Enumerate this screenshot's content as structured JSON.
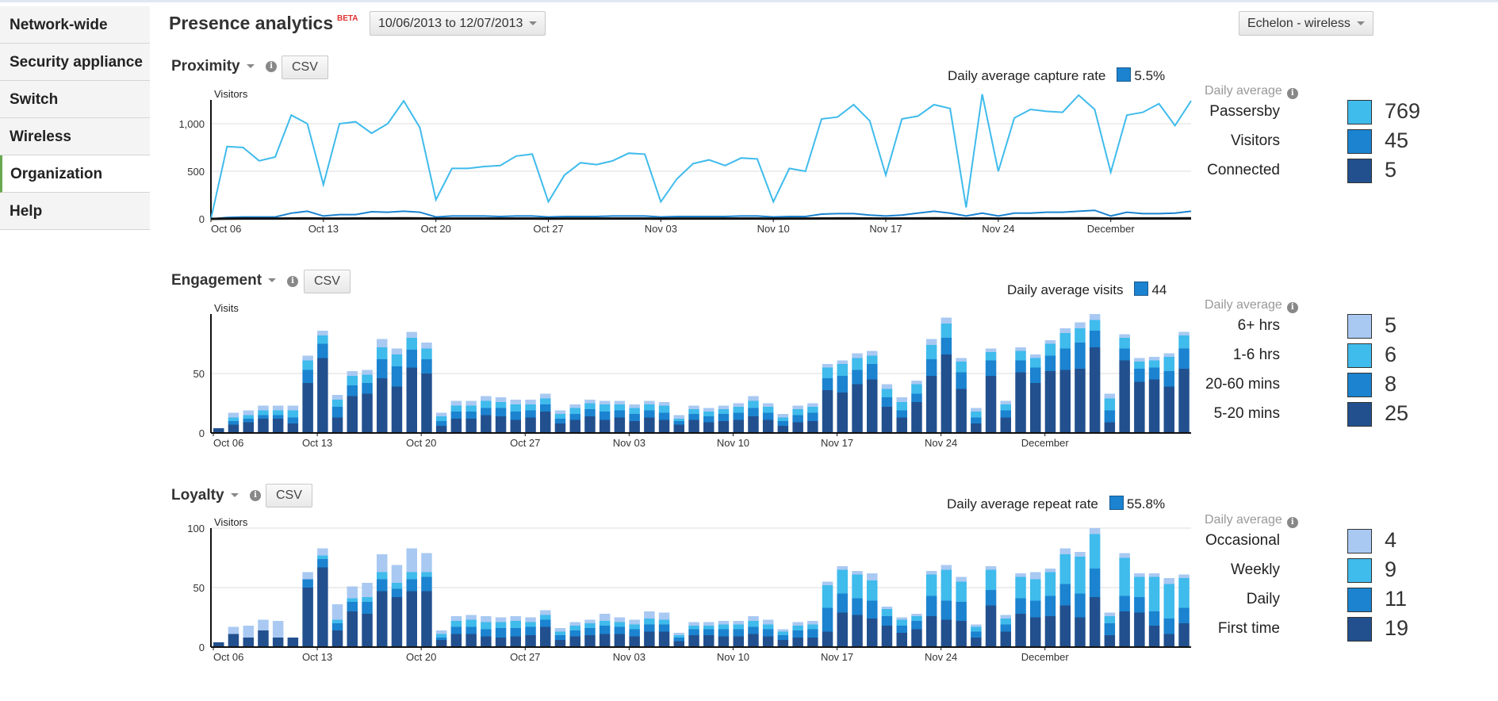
{
  "sidebar": {
    "items": [
      "Network-wide",
      "Security appliance",
      "Switch",
      "Wireless",
      "Organization",
      "Help"
    ],
    "active": "Organization"
  },
  "header": {
    "title": "Presence analytics",
    "badge": "BETA",
    "date_range": "10/06/2013 to 12/07/2013",
    "network": "Echelon - wireless"
  },
  "colors": {
    "passersby": "#3fbbec",
    "visitors": "#1b83d0",
    "connected": "#22508e",
    "light": "#a9c9f2"
  },
  "x_ticks": [
    "Oct 06",
    "Oct 13",
    "Oct 20",
    "Oct 27",
    "Nov 03",
    "Nov 10",
    "Nov 17",
    "Nov 24",
    "December"
  ],
  "sections": {
    "proximity": {
      "title": "Proximity",
      "csv": "CSV",
      "avg_label": "Daily average capture rate",
      "avg_value": "5.5%",
      "legend_head": "Daily average",
      "legend": [
        {
          "label": "Passersby",
          "value": "769",
          "color": "#3fbbec"
        },
        {
          "label": "Visitors",
          "value": "45",
          "color": "#1b83d0"
        },
        {
          "label": "Connected",
          "value": "5",
          "color": "#22508e"
        }
      ]
    },
    "engagement": {
      "title": "Engagement",
      "csv": "CSV",
      "avg_label": "Daily average visits",
      "avg_value": "44",
      "legend_head": "Daily average",
      "legend": [
        {
          "label": "6+ hrs",
          "value": "5",
          "color": "#a9c9f2"
        },
        {
          "label": "1-6 hrs",
          "value": "6",
          "color": "#3fbbec"
        },
        {
          "label": "20-60 mins",
          "value": "8",
          "color": "#1b83d0"
        },
        {
          "label": "5-20 mins",
          "value": "25",
          "color": "#22508e"
        }
      ]
    },
    "loyalty": {
      "title": "Loyalty",
      "csv": "CSV",
      "avg_label": "Daily average repeat rate",
      "avg_value": "55.8%",
      "legend_head": "Daily average",
      "legend": [
        {
          "label": "Occasional",
          "value": "4",
          "color": "#a9c9f2"
        },
        {
          "label": "Weekly",
          "value": "9",
          "color": "#3fbbec"
        },
        {
          "label": "Daily",
          "value": "11",
          "color": "#1b83d0"
        },
        {
          "label": "First time",
          "value": "19",
          "color": "#22508e"
        }
      ]
    }
  },
  "chart_data": [
    {
      "type": "line",
      "ylabel": "Visitors",
      "ylim": [
        0,
        1250
      ],
      "yticks": [
        "1,000",
        "500",
        "0"
      ],
      "ytick_values": [
        1000,
        500,
        0
      ],
      "series": [
        {
          "name": "Passersby",
          "values": [
            0,
            760,
            750,
            610,
            650,
            1090,
            1000,
            360,
            1000,
            1020,
            900,
            1000,
            1240,
            960,
            200,
            530,
            530,
            550,
            560,
            660,
            680,
            180,
            460,
            590,
            570,
            610,
            690,
            680,
            180,
            420,
            580,
            620,
            560,
            640,
            630,
            180,
            530,
            500,
            1050,
            1070,
            1200,
            1030,
            460,
            1050,
            1080,
            1200,
            1160,
            120,
            1310,
            500,
            1060,
            1150,
            1130,
            1120,
            1300,
            1150,
            490,
            1090,
            1120,
            1210,
            980,
            1240
          ]
        },
        {
          "name": "Visitors",
          "values": [
            0,
            15,
            20,
            20,
            20,
            60,
            80,
            30,
            45,
            45,
            75,
            70,
            80,
            70,
            20,
            30,
            30,
            30,
            25,
            30,
            30,
            20,
            25,
            25,
            25,
            30,
            30,
            30,
            20,
            25,
            25,
            25,
            25,
            30,
            30,
            20,
            25,
            25,
            50,
            55,
            55,
            40,
            30,
            40,
            60,
            80,
            60,
            30,
            60,
            30,
            60,
            60,
            70,
            70,
            80,
            90,
            30,
            70,
            55,
            55,
            60,
            80
          ]
        },
        {
          "name": "Connected",
          "values": [
            0,
            2,
            3,
            3,
            3,
            4,
            5,
            3,
            3,
            4,
            5,
            5,
            6,
            5,
            2,
            3,
            3,
            3,
            3,
            3,
            3,
            2,
            3,
            3,
            3,
            3,
            3,
            3,
            2,
            3,
            3,
            3,
            3,
            3,
            3,
            2,
            3,
            3,
            4,
            5,
            5,
            4,
            3,
            4,
            5,
            6,
            5,
            3,
            5,
            3,
            5,
            5,
            5,
            5,
            6,
            7,
            3,
            5,
            5,
            5,
            5,
            6
          ]
        }
      ]
    },
    {
      "type": "bar",
      "stacked": true,
      "ylabel": "Visits",
      "ylim": [
        0,
        100
      ],
      "yticks": [
        "50",
        "0"
      ],
      "ytick_values": [
        50,
        0
      ],
      "series": [
        {
          "name": "5-20 mins",
          "values": [
            4,
            7,
            9,
            12,
            12,
            8,
            42,
            63,
            13,
            31,
            33,
            46,
            39,
            55,
            50,
            6,
            12,
            12,
            15,
            14,
            11,
            13,
            18,
            8,
            11,
            14,
            11,
            13,
            10,
            13,
            11,
            7,
            11,
            9,
            10,
            11,
            14,
            11,
            6,
            9,
            10,
            36,
            34,
            41,
            45,
            22,
            13,
            26,
            48,
            66,
            37,
            8,
            48,
            13,
            51,
            42,
            52,
            53,
            54,
            72,
            9,
            61,
            43,
            45,
            39,
            54
          ]
        },
        {
          "name": "20-60 mins",
          "values": [
            0,
            3,
            3,
            3,
            3,
            5,
            11,
            12,
            9,
            9,
            9,
            16,
            17,
            15,
            12,
            4,
            6,
            6,
            6,
            7,
            7,
            6,
            6,
            4,
            5,
            6,
            7,
            6,
            6,
            6,
            6,
            3,
            5,
            5,
            6,
            6,
            7,
            6,
            4,
            6,
            7,
            10,
            14,
            12,
            13,
            8,
            6,
            7,
            14,
            14,
            14,
            5,
            13,
            6,
            10,
            13,
            13,
            18,
            22,
            14,
            10,
            10,
            11,
            10,
            13,
            17
          ]
        },
        {
          "name": "1-6 hrs",
          "values": [
            0,
            3,
            3,
            4,
            4,
            6,
            8,
            7,
            6,
            8,
            7,
            10,
            10,
            10,
            9,
            4,
            5,
            5,
            6,
            5,
            6,
            5,
            5,
            4,
            5,
            5,
            6,
            5,
            5,
            5,
            6,
            2,
            4,
            4,
            4,
            5,
            6,
            5,
            3,
            5,
            5,
            9,
            10,
            10,
            7,
            7,
            7,
            8,
            12,
            12,
            9,
            5,
            7,
            5,
            8,
            8,
            10,
            13,
            12,
            9,
            10,
            9,
            6,
            6,
            12,
            11
          ]
        },
        {
          "name": "6+ hrs",
          "values": [
            0,
            4,
            4,
            4,
            4,
            4,
            4,
            4,
            4,
            4,
            4,
            7,
            5,
            5,
            5,
            3,
            4,
            4,
            4,
            4,
            4,
            4,
            4,
            3,
            3,
            3,
            3,
            3,
            3,
            3,
            3,
            3,
            3,
            3,
            3,
            3,
            4,
            3,
            3,
            3,
            3,
            3,
            3,
            4,
            4,
            4,
            4,
            3,
            5,
            5,
            3,
            3,
            3,
            3,
            3,
            3,
            3,
            4,
            5,
            5,
            4,
            3,
            3,
            3,
            3,
            3
          ]
        }
      ]
    },
    {
      "type": "bar",
      "stacked": true,
      "ylabel": "Visitors",
      "ylim": [
        0,
        100
      ],
      "yticks": [
        "100",
        "50",
        "0"
      ],
      "ytick_values": [
        100,
        50,
        0
      ],
      "series": [
        {
          "name": "First time",
          "values": [
            4,
            11,
            8,
            14,
            8,
            8,
            50,
            67,
            14,
            30,
            28,
            47,
            42,
            47,
            47,
            6,
            11,
            11,
            9,
            8,
            9,
            10,
            17,
            6,
            9,
            10,
            11,
            11,
            9,
            13,
            13,
            5,
            10,
            10,
            9,
            9,
            11,
            9,
            6,
            8,
            8,
            13,
            29,
            27,
            24,
            18,
            12,
            15,
            26,
            23,
            22,
            8,
            35,
            13,
            28,
            25,
            26,
            35,
            25,
            42,
            10,
            30,
            29,
            18,
            11,
            20
          ]
        },
        {
          "name": "Daily",
          "values": [
            0,
            0,
            0,
            0,
            0,
            0,
            7,
            7,
            6,
            8,
            10,
            10,
            7,
            10,
            12,
            2,
            6,
            6,
            6,
            8,
            7,
            7,
            6,
            4,
            5,
            6,
            7,
            6,
            6,
            6,
            6,
            3,
            5,
            5,
            6,
            6,
            6,
            6,
            4,
            6,
            7,
            20,
            16,
            14,
            15,
            8,
            6,
            7,
            17,
            16,
            16,
            5,
            13,
            6,
            13,
            14,
            17,
            18,
            20,
            24,
            10,
            13,
            13,
            12,
            13,
            13
          ]
        },
        {
          "name": "Weekly",
          "values": [
            0,
            0,
            0,
            0,
            0,
            0,
            0,
            3,
            3,
            3,
            4,
            6,
            5,
            6,
            4,
            3,
            5,
            6,
            6,
            5,
            6,
            4,
            4,
            3,
            4,
            4,
            4,
            4,
            4,
            5,
            4,
            2,
            3,
            3,
            4,
            4,
            5,
            4,
            3,
            4,
            4,
            19,
            20,
            20,
            17,
            6,
            5,
            4,
            18,
            26,
            17,
            4,
            17,
            5,
            18,
            18,
            20,
            25,
            31,
            29,
            6,
            32,
            17,
            29,
            29,
            25
          ]
        },
        {
          "name": "Occasional",
          "values": [
            0,
            6,
            10,
            9,
            14,
            0,
            6,
            6,
            13,
            10,
            12,
            15,
            15,
            20,
            16,
            3,
            4,
            4,
            5,
            4,
            4,
            4,
            4,
            3,
            3,
            3,
            6,
            4,
            4,
            6,
            6,
            2,
            3,
            3,
            3,
            3,
            4,
            4,
            2,
            3,
            3,
            3,
            3,
            3,
            6,
            2,
            2,
            2,
            3,
            4,
            4,
            2,
            3,
            3,
            3,
            6,
            3,
            5,
            4,
            5,
            3,
            4,
            3,
            3,
            5,
            3
          ]
        }
      ]
    }
  ]
}
